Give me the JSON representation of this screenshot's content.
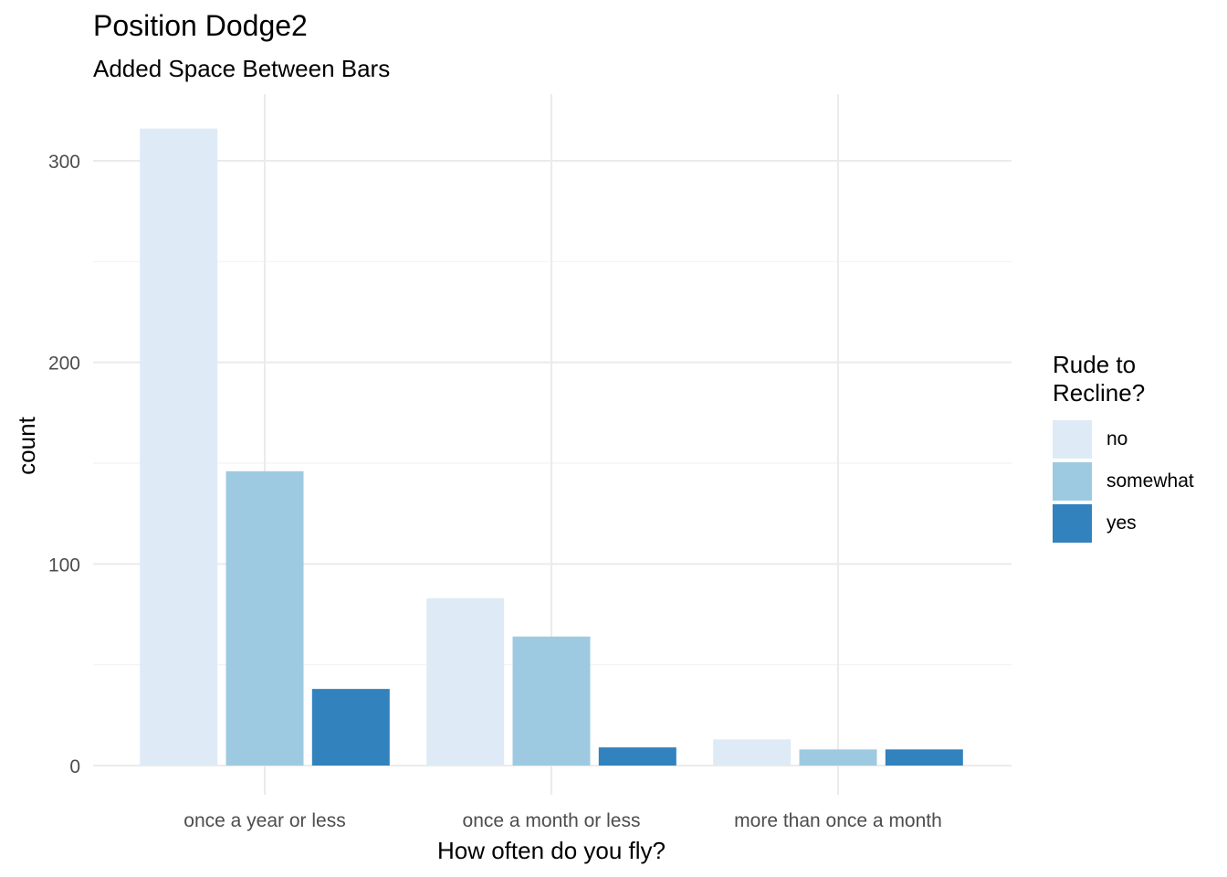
{
  "chart_data": {
    "type": "bar",
    "title": "Position Dodge2",
    "subtitle": "Added Space Between Bars",
    "xlabel": "How often do you fly?",
    "ylabel": "count",
    "categories": [
      "once a year or less",
      "once a month or less",
      "more than once a month"
    ],
    "series": [
      {
        "name": "no",
        "color": "#DEEBF7",
        "values": [
          316,
          83,
          13
        ]
      },
      {
        "name": "somewhat",
        "color": "#9ECAE1",
        "values": [
          146,
          64,
          8
        ]
      },
      {
        "name": "yes",
        "color": "#3182BD",
        "values": [
          38,
          9,
          8
        ]
      }
    ],
    "ylim": [
      0,
      330
    ],
    "yticks": [
      0,
      100,
      200,
      300
    ],
    "grid": true,
    "legend": {
      "title": "Rude to\nRecline?",
      "placement": "right"
    }
  }
}
